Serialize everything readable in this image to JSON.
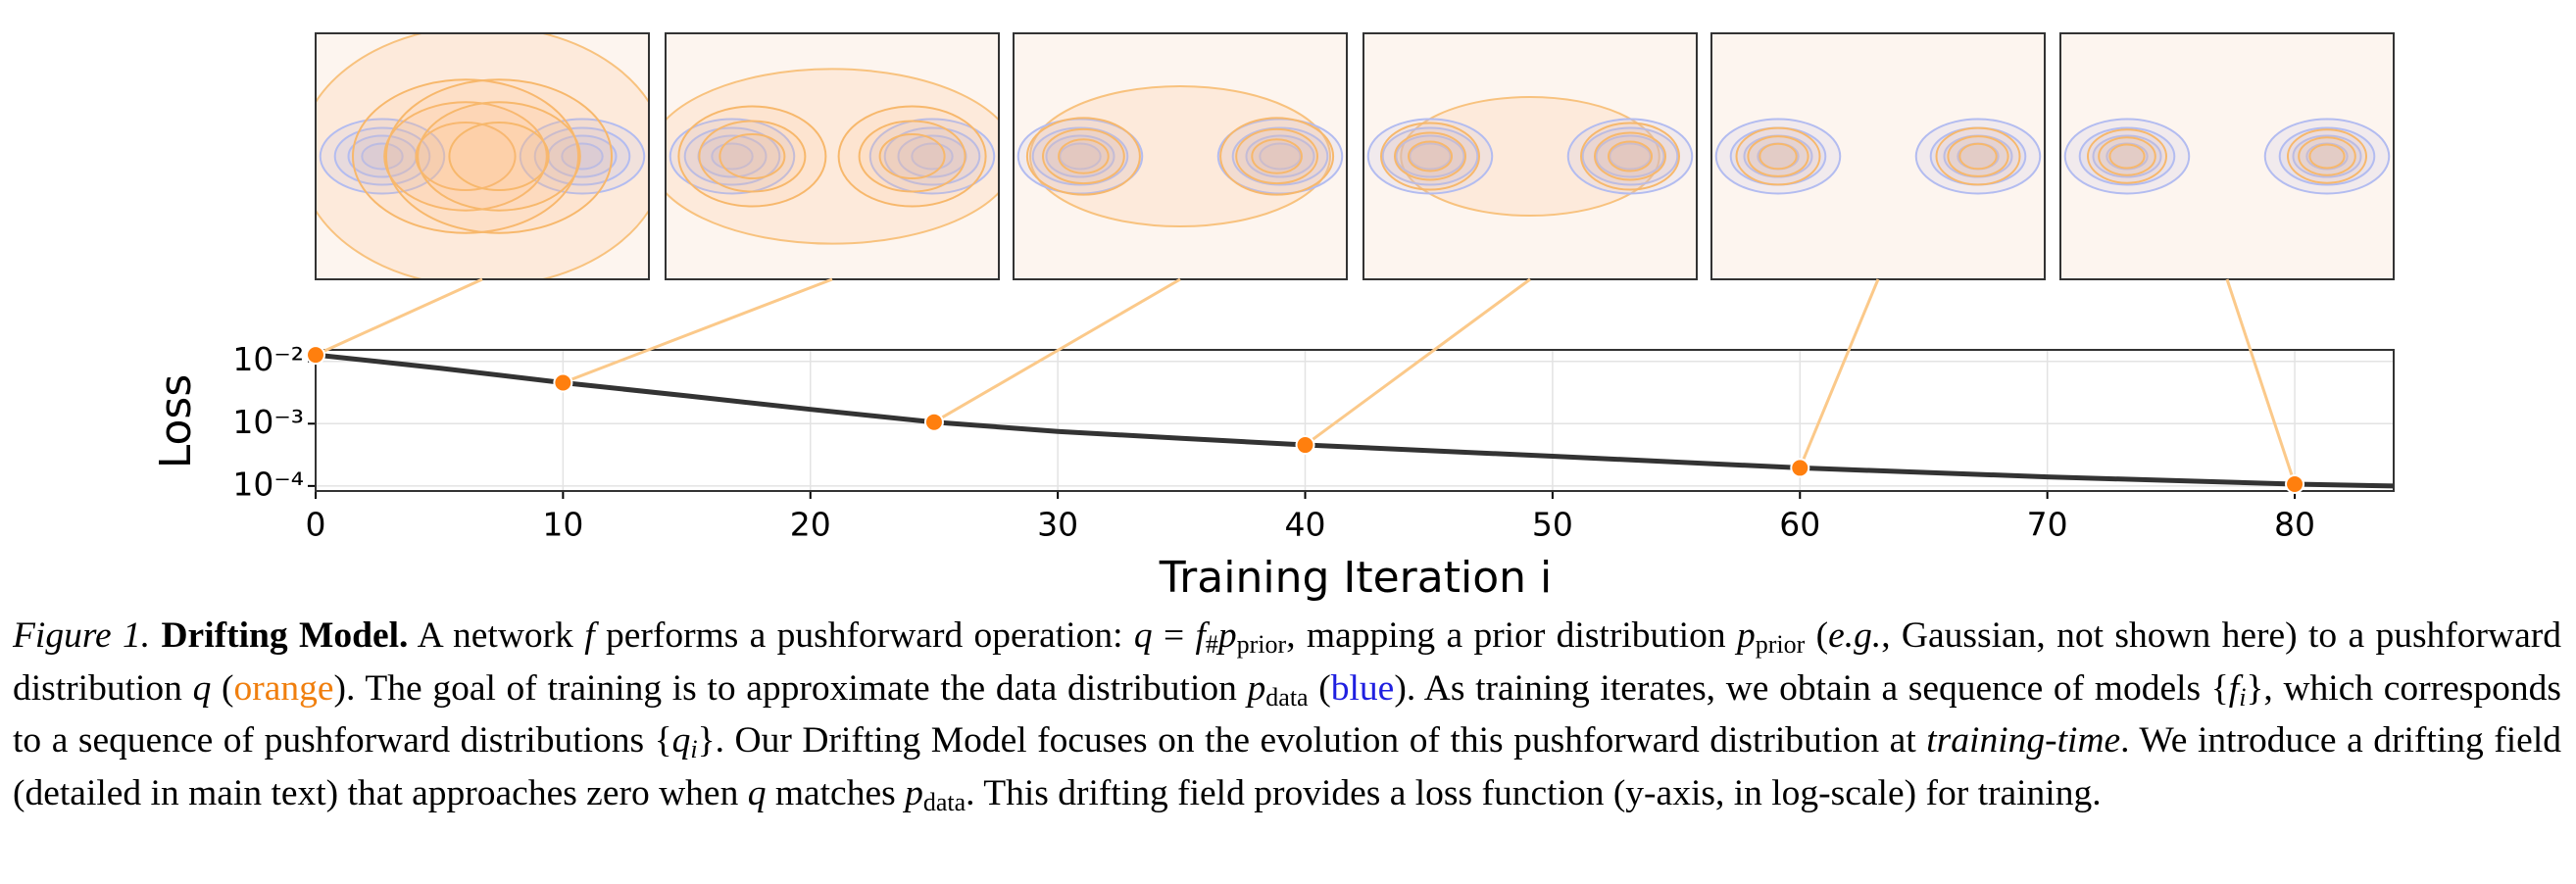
{
  "chart_data": {
    "type": "line",
    "ylabel": "Loss",
    "xlabel": "Training Iteration i",
    "x": [
      0,
      5,
      10,
      15,
      20,
      25,
      30,
      35,
      40,
      50,
      60,
      70,
      80,
      84
    ],
    "values": [
      0.0127,
      0.0078,
      0.00455,
      0.0028,
      0.0017,
      0.00106,
      0.00075,
      0.00058,
      0.000455,
      0.0003,
      0.000195,
      0.00014,
      0.000107,
      0.0001
    ],
    "color": "#333333",
    "highlights": {
      "x": [
        0,
        10,
        25,
        40,
        60,
        80
      ],
      "values": [
        0.0127,
        0.00455,
        0.00106,
        0.000455,
        0.000195,
        0.000107
      ],
      "color": "#ff7f0e"
    },
    "xlim": [
      0,
      84
    ],
    "ylim": [
      8.3e-05,
      0.0153
    ],
    "log_y": true,
    "grid": true,
    "xticks": [
      0,
      10,
      20,
      30,
      40,
      50,
      60,
      70,
      80
    ],
    "yticks": [
      {
        "value": 0.01,
        "label": "10⁻²"
      },
      {
        "value": 0.001,
        "label": "10⁻³"
      },
      {
        "value": 0.0001,
        "label": "10⁻⁴"
      }
    ]
  },
  "caption": [
    {
      "t": "Figure 1. ",
      "s": "italic"
    },
    {
      "t": "Drifting Model.",
      "s": "bold"
    },
    {
      "t": " A network ",
      "s": "normal"
    },
    {
      "t": "f",
      "s": "math"
    },
    {
      "t": " performs a pushforward operation: ",
      "s": "normal"
    },
    {
      "t": "q",
      "s": "math"
    },
    {
      "t": " = ",
      "s": "normal"
    },
    {
      "t": "f",
      "s": "math"
    },
    {
      "t": "#",
      "s": "sub"
    },
    {
      "t": "p",
      "s": "math"
    },
    {
      "t": "prior",
      "s": "sub"
    },
    {
      "t": ", mapping a prior distribution ",
      "s": "normal"
    },
    {
      "t": "p",
      "s": "math"
    },
    {
      "t": "prior",
      "s": "sub"
    },
    {
      "t": " (",
      "s": "normal"
    },
    {
      "t": "e.g.",
      "s": "italic"
    },
    {
      "t": ", Gaussian, not shown here) to a pushforward distribution ",
      "s": "normal"
    },
    {
      "t": "q",
      "s": "math"
    },
    {
      "t": " (",
      "s": "normal"
    },
    {
      "t": "orange",
      "s": "orange"
    },
    {
      "t": "). The goal of training is to approximate the data distribution ",
      "s": "normal"
    },
    {
      "t": "p",
      "s": "math"
    },
    {
      "t": "data",
      "s": "sub"
    },
    {
      "t": " (",
      "s": "normal"
    },
    {
      "t": "blue",
      "s": "blue"
    },
    {
      "t": "). As training iterates, we obtain a sequence of models {",
      "s": "normal"
    },
    {
      "t": "f",
      "s": "math"
    },
    {
      "t": "i",
      "s": "subi"
    },
    {
      "t": "}, which corresponds to a sequence of pushforward distributions {",
      "s": "normal"
    },
    {
      "t": "q",
      "s": "math"
    },
    {
      "t": "i",
      "s": "subi"
    },
    {
      "t": "}. Our Drifting Model focuses on the evolution of this pushforward distribution at ",
      "s": "normal"
    },
    {
      "t": "training-time",
      "s": "italic"
    },
    {
      "t": ". We introduce a drifting field (detailed in main text) that approaches zero when ",
      "s": "normal"
    },
    {
      "t": "q",
      "s": "math"
    },
    {
      "t": " matches ",
      "s": "normal"
    },
    {
      "t": "p",
      "s": "math"
    },
    {
      "t": "data",
      "s": "sub"
    },
    {
      "t": ". This drifting field provides a loss function (y-axis, in log-scale) for training.",
      "s": "normal"
    }
  ]
}
